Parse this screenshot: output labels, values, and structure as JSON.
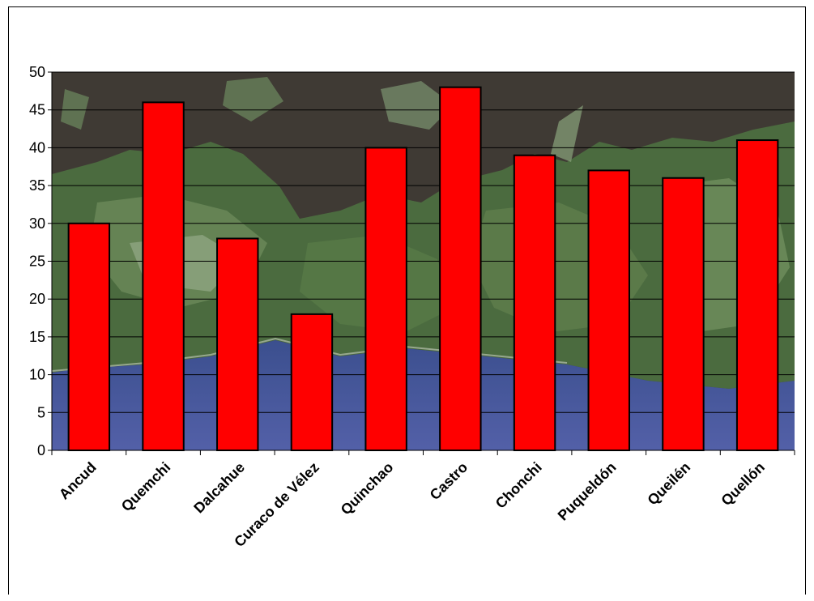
{
  "chart_data": {
    "type": "bar",
    "categories": [
      "Ancud",
      "Quemchi",
      "Dalcahue",
      "Curaco de Vélez",
      "Quinchao",
      "Castro",
      "Chonchi",
      "Puqueldón",
      "Queilén",
      "Quellón"
    ],
    "values": [
      30,
      46,
      28,
      18,
      40,
      48,
      39,
      37,
      36,
      41
    ],
    "title": "",
    "xlabel": "",
    "ylabel": "",
    "ylim": [
      0,
      50
    ],
    "yticks": [
      0,
      5,
      10,
      15,
      20,
      25,
      30,
      35,
      40,
      45,
      50
    ],
    "grid": true,
    "legend": "none",
    "bar_color": "#ff0000",
    "background": "satellite image of Chiloé archipelago (land, sea and clouds)"
  }
}
